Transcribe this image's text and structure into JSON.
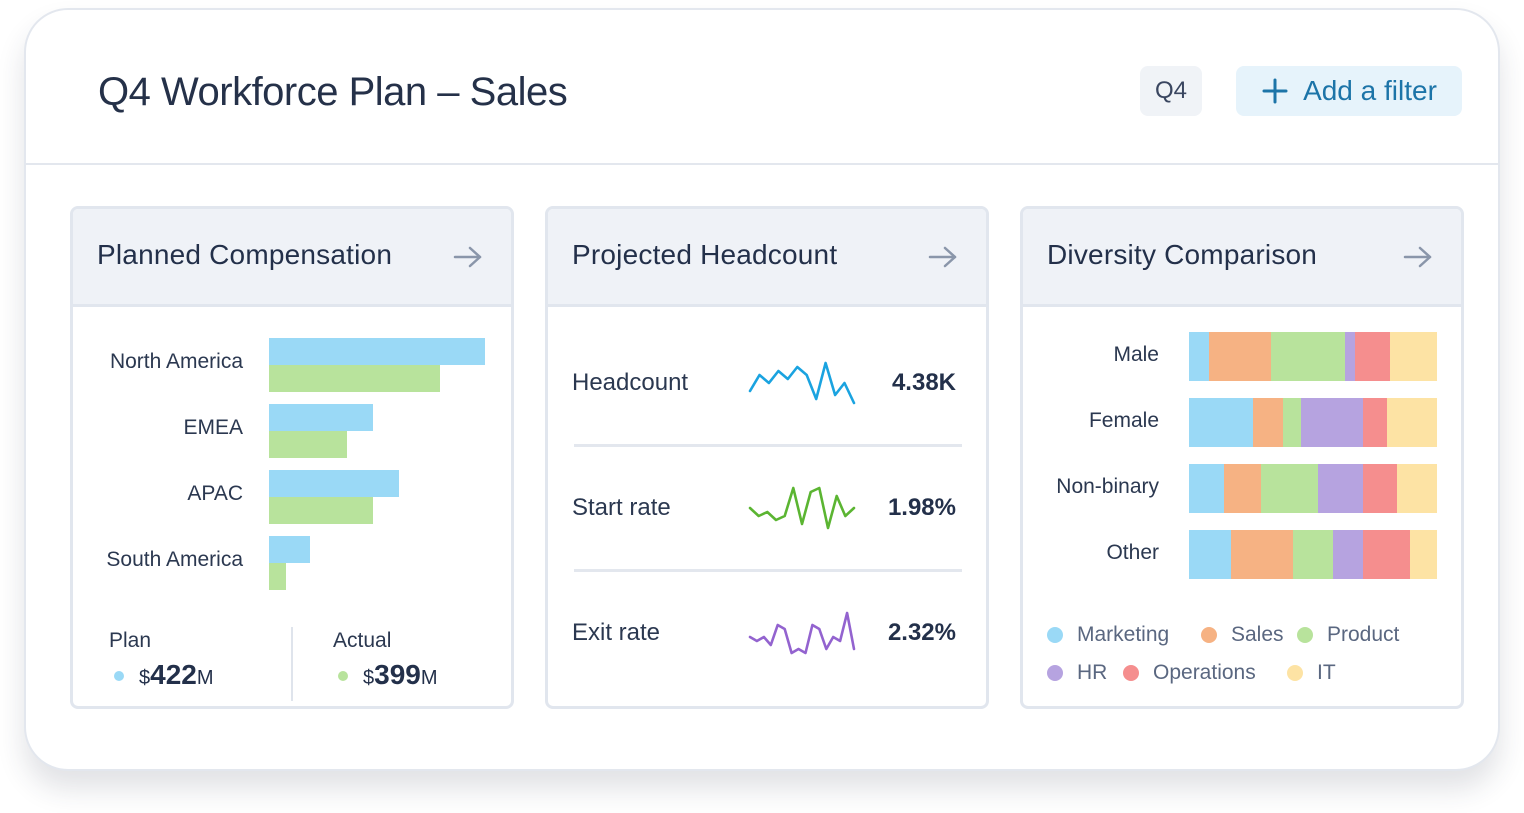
{
  "header": {
    "title": "Q4 Workforce Plan – Sales",
    "quarter_label": "Q4",
    "filter_label": "Add a filter"
  },
  "colors": {
    "plan": "#9ad9f6",
    "actual": "#b8e39c",
    "marketing": "#9ad9f6",
    "sales": "#f6b283",
    "product": "#b8e39c",
    "hr": "#b6a3e0",
    "operations": "#f58e8e",
    "it": "#fde3a4",
    "headcount_line": "#1aa3e0",
    "start_line": "#5bb532",
    "exit_line": "#9363cf"
  },
  "compensation": {
    "title": "Planned Compensation",
    "max_value": 100,
    "regions": [
      {
        "name": "North America",
        "plan": 100,
        "actual": 79
      },
      {
        "name": "EMEA",
        "plan": 48,
        "actual": 36
      },
      {
        "name": "APAC",
        "plan": 60,
        "actual": 48
      },
      {
        "name": "South America",
        "plan": 19,
        "actual": 8
      }
    ],
    "summary": {
      "plan_label": "Plan",
      "plan_currency": "$",
      "plan_value": "422",
      "plan_unit": "M",
      "actual_label": "Actual",
      "actual_currency": "$",
      "actual_value": "399",
      "actual_unit": "M"
    }
  },
  "headcount": {
    "title": "Projected Headcount",
    "metrics": [
      {
        "label": "Headcount",
        "value": "4.38K",
        "color": "headcount_line",
        "trend": [
          5,
          9,
          7,
          10,
          8,
          11,
          9,
          3,
          12,
          4,
          7,
          2
        ]
      },
      {
        "label": "Start rate",
        "value": "1.98%",
        "color": "start_line",
        "trend": [
          6,
          4,
          5,
          3,
          4,
          11,
          2,
          10,
          11,
          1,
          9,
          4,
          6
        ]
      },
      {
        "label": "Exit rate",
        "value": "2.32%",
        "color": "exit_line",
        "trend": [
          6,
          5,
          6,
          4,
          9,
          8,
          2,
          3,
          2,
          9,
          8,
          3,
          6,
          5,
          12,
          3
        ]
      }
    ]
  },
  "diversity": {
    "title": "Diversity Comparison",
    "groups": [
      {
        "name": "Male",
        "segments": [
          8,
          25,
          30,
          4,
          14,
          19
        ]
      },
      {
        "name": "Female",
        "segments": [
          26,
          12,
          7,
          25,
          10,
          20
        ]
      },
      {
        "name": "Non-binary",
        "segments": [
          14,
          15,
          23,
          18,
          14,
          16
        ]
      },
      {
        "name": "Other",
        "segments": [
          17,
          25,
          16,
          12,
          19,
          11
        ]
      }
    ],
    "legend": [
      {
        "name": "Marketing",
        "color": "marketing"
      },
      {
        "name": "Sales",
        "color": "sales"
      },
      {
        "name": "Product",
        "color": "product"
      },
      {
        "name": "HR",
        "color": "hr"
      },
      {
        "name": "Operations",
        "color": "operations"
      },
      {
        "name": "IT",
        "color": "it"
      }
    ]
  }
}
